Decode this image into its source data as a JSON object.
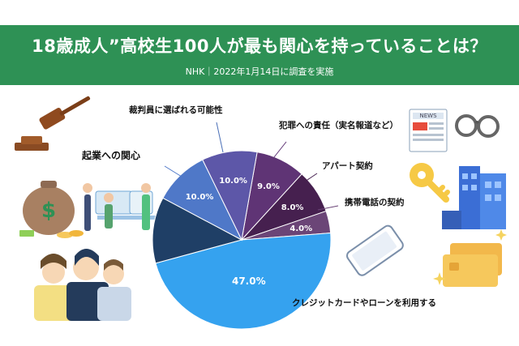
{
  "header": {
    "title": "18歳成人”高校生100人が最も関心を持っていることは？",
    "subtitle": "NHK｜2022年1月14日に調査を実施"
  },
  "chart_data": {
    "type": "pie",
    "start_angle_deg": 10,
    "slices": [
      {
        "label": "犯罪への責任（実名報道など）",
        "value": 9.0,
        "value_label": "9.0%",
        "color": "#5f3475"
      },
      {
        "label": "アパート契約",
        "value": 8.0,
        "value_label": "8.0%",
        "color": "#46204f"
      },
      {
        "label": "携帯電話の契約",
        "value": 4.0,
        "value_label": "4.0%",
        "color": "#6b4577"
      },
      {
        "label": "クレジットカードやローンを利用する",
        "value": 47.0,
        "value_label": "47.0%",
        "color": "#35a2ef"
      },
      {
        "label": "",
        "value": 12.0,
        "value_label": "",
        "color": "#1f3f66"
      },
      {
        "label": "起業への関心",
        "value": 10.0,
        "value_label": "10.0%",
        "color": "#4f78c8"
      },
      {
        "label": "裁判員に選ばれる可能性",
        "value": 10.0,
        "value_label": "10.0%",
        "color": "#5d57a8"
      }
    ]
  },
  "icons": {
    "gavel": "gavel-icon",
    "money": "money-bag-icon",
    "office": "office-workers-icon",
    "people": "people-group-icon",
    "news": "newspaper-icon",
    "handcuffs": "handcuffs-icon",
    "key": "key-icon",
    "building": "apartment-building-icon",
    "phone": "smartphone-icon",
    "cards": "credit-card-icon"
  }
}
